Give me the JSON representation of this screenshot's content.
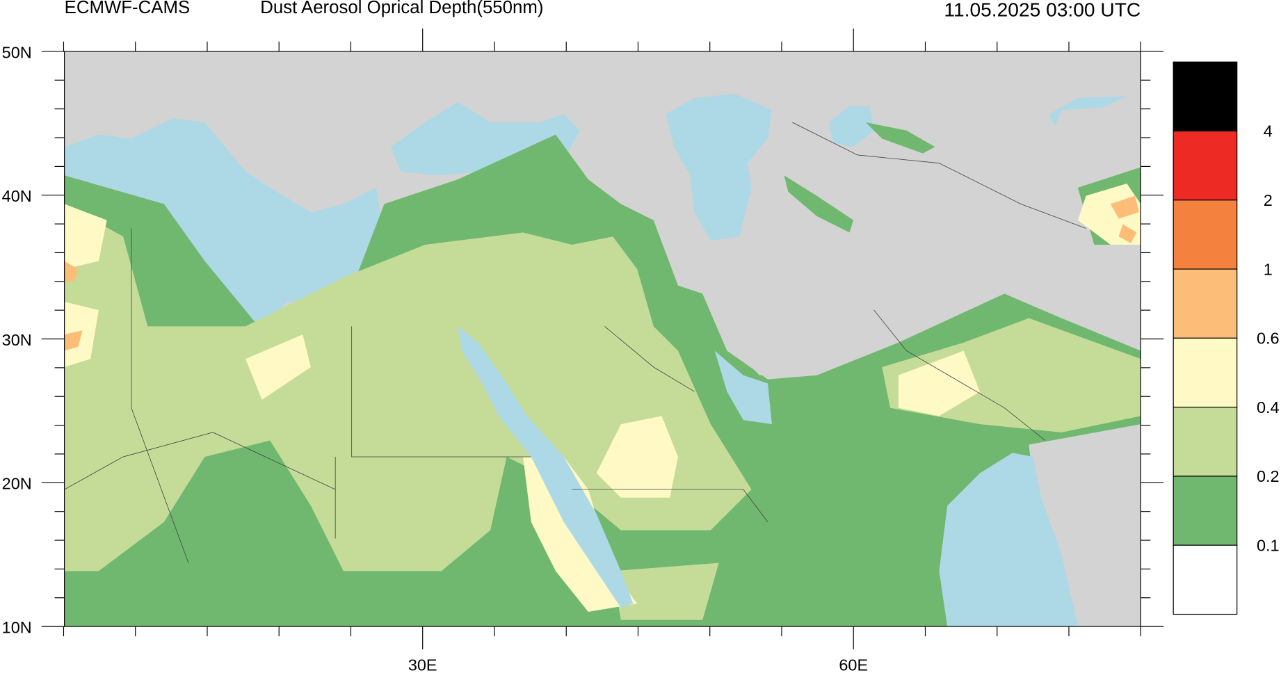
{
  "header": {
    "source": "ECMWF-CAMS",
    "title": "Dust Aerosol Oprical Depth(550nm)",
    "time": "11.05.2025 03:00 UTC"
  },
  "map": {
    "lat_labels": [
      "50N",
      "40N",
      "30N",
      "20N",
      "10N"
    ],
    "lon_labels": [
      "30E",
      "60E"
    ]
  },
  "colorbar": {
    "labels": [
      "4",
      "2",
      "1",
      "0.6",
      "0.4",
      "0.2",
      "0.1"
    ],
    "colors": [
      "#000000",
      "#ee2a24",
      "#f5813f",
      "#fbbd77",
      "#fef9c5",
      "#c5dc99",
      "#70b86f",
      "#ffffff"
    ]
  }
}
